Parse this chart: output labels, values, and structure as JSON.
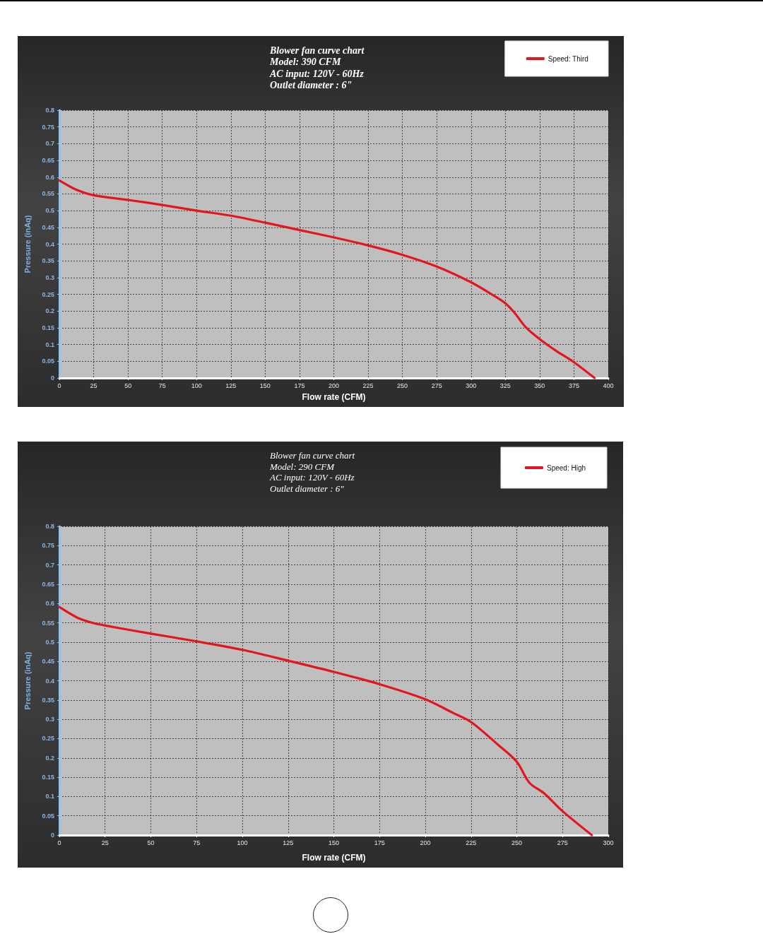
{
  "chart_data": [
    {
      "type": "line",
      "title": "Blower fan curve chart\nModel: 390 CFM\nAC input: 120V - 60Hz\nOutlet diameter : 6\"",
      "xlabel": "Flow rate (CFM)",
      "ylabel": "Pressure (inAq)",
      "x": [
        0,
        12,
        25,
        50,
        75,
        100,
        125,
        150,
        175,
        200,
        225,
        250,
        275,
        300,
        315,
        325,
        332,
        340,
        350,
        362,
        375,
        390
      ],
      "series": [
        {
          "name": "Speed: Third",
          "color": "#e3161e",
          "values": [
            0.59,
            0.563,
            0.546,
            0.532,
            0.517,
            0.5,
            0.485,
            0.464,
            0.442,
            0.42,
            0.396,
            0.368,
            0.333,
            0.286,
            0.25,
            0.223,
            0.193,
            0.151,
            0.116,
            0.081,
            0.047,
            0
          ]
        }
      ],
      "xlim": [
        0,
        400
      ],
      "xticks": [
        0,
        25,
        50,
        75,
        100,
        125,
        150,
        175,
        200,
        225,
        250,
        275,
        300,
        325,
        350,
        375,
        400
      ],
      "ylim": [
        0,
        0.8
      ],
      "yticks": [
        0,
        0.05,
        0.1,
        0.15,
        0.2,
        0.25,
        0.3,
        0.35,
        0.4,
        0.45,
        0.5,
        0.55,
        0.6,
        0.65,
        0.7,
        0.75,
        0.8
      ],
      "grid": true,
      "legend": "top right"
    },
    {
      "type": "line",
      "title": "Blower fan curve chart\nModel: 290 CFM\nAC input: 120V - 60Hz\nOutlet diameter : 6\"",
      "xlabel": "Flow rate (CFM)",
      "ylabel": "Pressure (inAq)",
      "x": [
        0,
        10,
        18,
        25,
        50,
        75,
        100,
        125,
        150,
        175,
        200,
        215,
        225,
        240,
        250,
        257,
        265,
        275,
        291
      ],
      "series": [
        {
          "name": "Speed: High",
          "color": "#e3161e",
          "values": [
            0.591,
            0.563,
            0.55,
            0.543,
            0.522,
            0.502,
            0.48,
            0.452,
            0.423,
            0.391,
            0.352,
            0.317,
            0.293,
            0.233,
            0.19,
            0.135,
            0.108,
            0.062,
            0
          ]
        }
      ],
      "xlim": [
        0,
        300
      ],
      "xticks": [
        0,
        25,
        50,
        75,
        100,
        125,
        150,
        175,
        200,
        225,
        250,
        275,
        300
      ],
      "ylim": [
        0,
        0.8
      ],
      "yticks": [
        0,
        0.05,
        0.1,
        0.15,
        0.2,
        0.25,
        0.3,
        0.35,
        0.4,
        0.45,
        0.5,
        0.55,
        0.6,
        0.65,
        0.7,
        0.75,
        0.8
      ],
      "grid": true,
      "legend": "top right"
    }
  ]
}
